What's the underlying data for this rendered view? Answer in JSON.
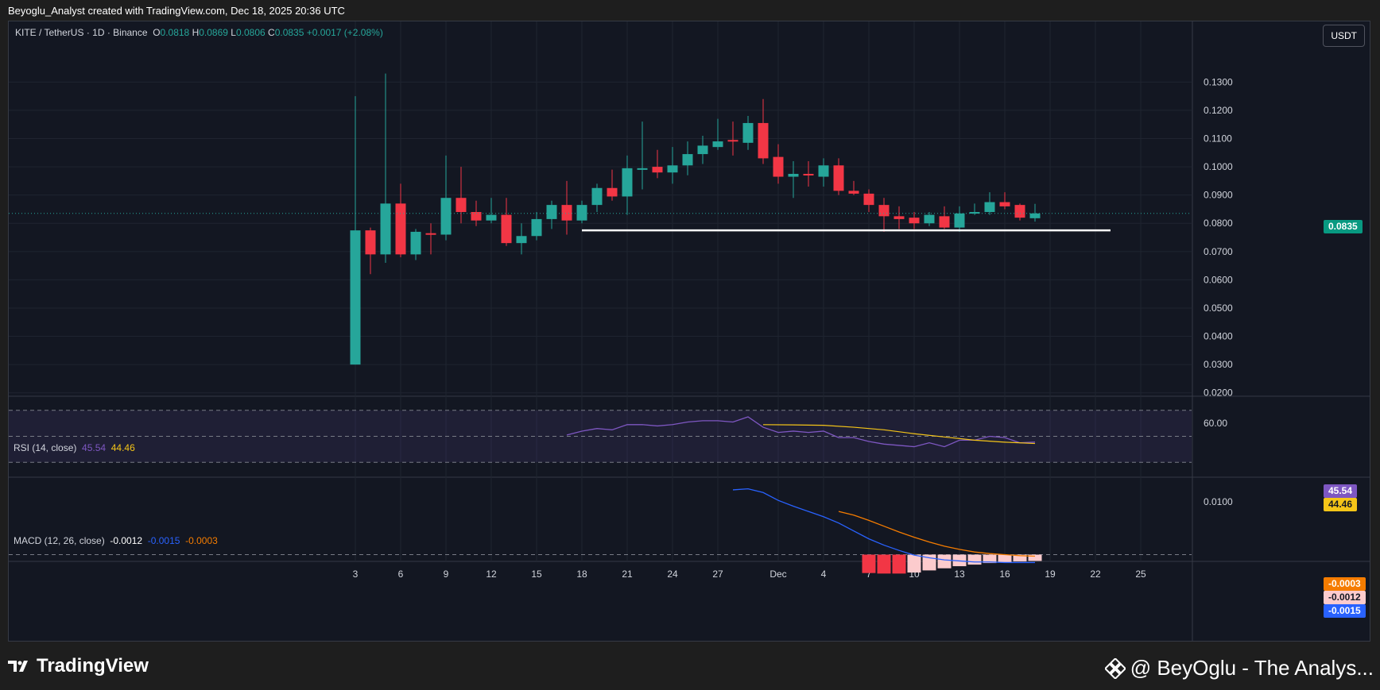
{
  "header": {
    "attribution": "Beyoglu_Analyst created with TradingView.com, Dec 18, 2025 20:36 UTC"
  },
  "legend": {
    "symbol": "KITE / TetherUS · 1D · Binance",
    "o_label": "O",
    "o_val": "0.0818",
    "h_label": "H",
    "h_val": "0.0869",
    "l_label": "L",
    "l_val": "0.0806",
    "c_label": "C",
    "c_val": "0.0835",
    "change": "+0.0017 (+2.08%)"
  },
  "currency_button": "USDT",
  "price_tag": "0.0835",
  "rsi": {
    "label": "RSI (14, close)",
    "value": "45.54",
    "ma": "44.46"
  },
  "macd": {
    "label": "MACD (12, 26, close)",
    "hist": "-0.0012",
    "macd": "-0.0015",
    "signal": "-0.0003"
  },
  "macd_tags": {
    "signal": "-0.0003",
    "hist": "-0.0012",
    "macd": "-0.0015"
  },
  "footer": {
    "logo": "TradingView",
    "credit": "@ BeyOglu - The Analys..."
  },
  "colors": {
    "up": "#26a69a",
    "down": "#f23645",
    "rsi": "#7e57c2",
    "rsi_ma": "#f5c518",
    "macd": "#2962ff",
    "signal": "#f57c00"
  },
  "chart_data": {
    "type": "candlestick",
    "title": "KITE / TetherUS · 1D · Binance",
    "x_ticks": [
      {
        "day": 3,
        "label": "3"
      },
      {
        "day": 6,
        "label": "6"
      },
      {
        "day": 9,
        "label": "9"
      },
      {
        "day": 12,
        "label": "12"
      },
      {
        "day": 15,
        "label": "15"
      },
      {
        "day": 18,
        "label": "18"
      },
      {
        "day": 21,
        "label": "21"
      },
      {
        "day": 24,
        "label": "24"
      },
      {
        "day": 27,
        "label": "27"
      },
      {
        "day": 31,
        "label": "Dec"
      },
      {
        "day": 34,
        "label": "4"
      },
      {
        "day": 37,
        "label": "7"
      },
      {
        "day": 40,
        "label": "10"
      },
      {
        "day": 43,
        "label": "13"
      },
      {
        "day": 46,
        "label": "16"
      },
      {
        "day": 49,
        "label": "19"
      },
      {
        "day": 52,
        "label": "22"
      },
      {
        "day": 55,
        "label": "25"
      }
    ],
    "y_ticks": [
      "0.1300",
      "0.1200",
      "0.1100",
      "0.1000",
      "0.0900",
      "0.0800",
      "0.0700",
      "0.0600",
      "0.0500",
      "0.0400",
      "0.0300",
      "0.0200"
    ],
    "ylim": [
      0.0195,
      0.136
    ],
    "candles": [
      {
        "day": 3,
        "o": 0.03,
        "h": 0.125,
        "l": 0.03,
        "c": 0.0775
      },
      {
        "day": 4,
        "o": 0.0775,
        "h": 0.0785,
        "l": 0.062,
        "c": 0.069
      },
      {
        "day": 5,
        "o": 0.069,
        "h": 0.133,
        "l": 0.066,
        "c": 0.087
      },
      {
        "day": 6,
        "o": 0.087,
        "h": 0.094,
        "l": 0.068,
        "c": 0.069
      },
      {
        "day": 7,
        "o": 0.069,
        "h": 0.078,
        "l": 0.067,
        "c": 0.077
      },
      {
        "day": 8,
        "o": 0.0765,
        "h": 0.08,
        "l": 0.069,
        "c": 0.076
      },
      {
        "day": 9,
        "o": 0.076,
        "h": 0.104,
        "l": 0.074,
        "c": 0.089
      },
      {
        "day": 10,
        "o": 0.089,
        "h": 0.1,
        "l": 0.08,
        "c": 0.084
      },
      {
        "day": 11,
        "o": 0.084,
        "h": 0.088,
        "l": 0.079,
        "c": 0.081
      },
      {
        "day": 12,
        "o": 0.081,
        "h": 0.089,
        "l": 0.08,
        "c": 0.083
      },
      {
        "day": 13,
        "o": 0.083,
        "h": 0.089,
        "l": 0.072,
        "c": 0.073
      },
      {
        "day": 14,
        "o": 0.073,
        "h": 0.08,
        "l": 0.069,
        "c": 0.0755
      },
      {
        "day": 15,
        "o": 0.0755,
        "h": 0.084,
        "l": 0.074,
        "c": 0.0815
      },
      {
        "day": 16,
        "o": 0.0815,
        "h": 0.088,
        "l": 0.078,
        "c": 0.0865
      },
      {
        "day": 17,
        "o": 0.0865,
        "h": 0.095,
        "l": 0.076,
        "c": 0.081
      },
      {
        "day": 18,
        "o": 0.081,
        "h": 0.088,
        "l": 0.08,
        "c": 0.0865
      },
      {
        "day": 19,
        "o": 0.0865,
        "h": 0.094,
        "l": 0.084,
        "c": 0.0925
      },
      {
        "day": 20,
        "o": 0.0925,
        "h": 0.099,
        "l": 0.088,
        "c": 0.0895
      },
      {
        "day": 21,
        "o": 0.0895,
        "h": 0.104,
        "l": 0.083,
        "c": 0.0995
      },
      {
        "day": 22,
        "o": 0.0995,
        "h": 0.116,
        "l": 0.092,
        "c": 0.0995
      },
      {
        "day": 23,
        "o": 0.1,
        "h": 0.106,
        "l": 0.096,
        "c": 0.098
      },
      {
        "day": 24,
        "o": 0.098,
        "h": 0.107,
        "l": 0.094,
        "c": 0.1005
      },
      {
        "day": 25,
        "o": 0.1005,
        "h": 0.109,
        "l": 0.097,
        "c": 0.1045
      },
      {
        "day": 26,
        "o": 0.1045,
        "h": 0.111,
        "l": 0.101,
        "c": 0.1075
      },
      {
        "day": 27,
        "o": 0.107,
        "h": 0.117,
        "l": 0.106,
        "c": 0.109
      },
      {
        "day": 28,
        "o": 0.1095,
        "h": 0.116,
        "l": 0.104,
        "c": 0.109
      },
      {
        "day": 29,
        "o": 0.1085,
        "h": 0.118,
        "l": 0.106,
        "c": 0.1155
      },
      {
        "day": 30,
        "o": 0.1155,
        "h": 0.124,
        "l": 0.101,
        "c": 0.103
      },
      {
        "day": 31,
        "o": 0.1035,
        "h": 0.108,
        "l": 0.094,
        "c": 0.0965
      },
      {
        "day": 32,
        "o": 0.0965,
        "h": 0.102,
        "l": 0.089,
        "c": 0.0975
      },
      {
        "day": 33,
        "o": 0.0975,
        "h": 0.102,
        "l": 0.093,
        "c": 0.097
      },
      {
        "day": 34,
        "o": 0.0965,
        "h": 0.103,
        "l": 0.093,
        "c": 0.1005
      },
      {
        "day": 35,
        "o": 0.1005,
        "h": 0.103,
        "l": 0.09,
        "c": 0.0915
      },
      {
        "day": 36,
        "o": 0.0915,
        "h": 0.095,
        "l": 0.09,
        "c": 0.0905
      },
      {
        "day": 37,
        "o": 0.0905,
        "h": 0.092,
        "l": 0.084,
        "c": 0.0865
      },
      {
        "day": 38,
        "o": 0.0865,
        "h": 0.089,
        "l": 0.077,
        "c": 0.0825
      },
      {
        "day": 39,
        "o": 0.0825,
        "h": 0.086,
        "l": 0.078,
        "c": 0.0815
      },
      {
        "day": 40,
        "o": 0.082,
        "h": 0.084,
        "l": 0.078,
        "c": 0.08
      },
      {
        "day": 41,
        "o": 0.08,
        "h": 0.084,
        "l": 0.079,
        "c": 0.083
      },
      {
        "day": 42,
        "o": 0.0825,
        "h": 0.086,
        "l": 0.078,
        "c": 0.0785
      },
      {
        "day": 43,
        "o": 0.0785,
        "h": 0.086,
        "l": 0.077,
        "c": 0.0835
      },
      {
        "day": 44,
        "o": 0.0835,
        "h": 0.087,
        "l": 0.083,
        "c": 0.084
      },
      {
        "day": 45,
        "o": 0.084,
        "h": 0.091,
        "l": 0.083,
        "c": 0.0875
      },
      {
        "day": 46,
        "o": 0.0875,
        "h": 0.091,
        "l": 0.085,
        "c": 0.086
      },
      {
        "day": 47,
        "o": 0.0865,
        "h": 0.087,
        "l": 0.081,
        "c": 0.082
      },
      {
        "day": 48,
        "o": 0.0818,
        "h": 0.0869,
        "l": 0.0806,
        "c": 0.0835
      }
    ],
    "support_line": {
      "from_day": 18,
      "to_day": 53,
      "price": 0.0775
    },
    "last_price": 0.0835,
    "rsi": {
      "y_ticks": [
        "60.00"
      ],
      "bands": [
        70,
        50,
        30
      ],
      "ylim": [
        24,
        76
      ],
      "rsi_values": [
        [
          17,
          51
        ],
        [
          18,
          54
        ],
        [
          19,
          56
        ],
        [
          20,
          55
        ],
        [
          21,
          59
        ],
        [
          22,
          59
        ],
        [
          23,
          58
        ],
        [
          24,
          59
        ],
        [
          25,
          61
        ],
        [
          26,
          62
        ],
        [
          27,
          62
        ],
        [
          28,
          61
        ],
        [
          29,
          65
        ],
        [
          30,
          57
        ],
        [
          31,
          53
        ],
        [
          32,
          54
        ],
        [
          33,
          53
        ],
        [
          34,
          54
        ],
        [
          35,
          49
        ],
        [
          36,
          49
        ],
        [
          37,
          46
        ],
        [
          38,
          44
        ],
        [
          39,
          43
        ],
        [
          40,
          42
        ],
        [
          41,
          45
        ],
        [
          42,
          42
        ],
        [
          43,
          47
        ],
        [
          44,
          47
        ],
        [
          45,
          50
        ],
        [
          46,
          49
        ],
        [
          47,
          45
        ],
        [
          48,
          45.54
        ]
      ],
      "ma_values": [
        [
          30,
          59
        ],
        [
          32,
          58.8
        ],
        [
          34,
          58.5
        ],
        [
          36,
          57
        ],
        [
          38,
          55
        ],
        [
          40,
          52
        ],
        [
          42,
          49.5
        ],
        [
          44,
          47
        ],
        [
          46,
          45.5
        ],
        [
          48,
          44.46
        ]
      ]
    },
    "macd": {
      "y_ticks": [
        "0.0100"
      ],
      "ylim": [
        -0.0043,
        0.0138
      ],
      "macd_values": [
        [
          28,
          0.0123
        ],
        [
          29,
          0.0125
        ],
        [
          30,
          0.0118
        ],
        [
          31,
          0.0103
        ],
        [
          32,
          0.0092
        ],
        [
          33,
          0.0082
        ],
        [
          34,
          0.0072
        ],
        [
          35,
          0.006
        ],
        [
          36,
          0.0045
        ],
        [
          37,
          0.003
        ],
        [
          38,
          0.0018
        ],
        [
          39,
          0.0008
        ],
        [
          40,
          -0.0001
        ],
        [
          41,
          -0.0006
        ],
        [
          42,
          -0.001
        ],
        [
          43,
          -0.0012
        ],
        [
          44,
          -0.0014
        ],
        [
          45,
          -0.0014
        ],
        [
          46,
          -0.0015
        ],
        [
          47,
          -0.0015
        ],
        [
          48,
          -0.0015
        ]
      ],
      "signal_values": [
        [
          35,
          0.0082
        ],
        [
          36,
          0.0075
        ],
        [
          37,
          0.0065
        ],
        [
          38,
          0.0054
        ],
        [
          39,
          0.0043
        ],
        [
          40,
          0.0033
        ],
        [
          41,
          0.0024
        ],
        [
          42,
          0.0016
        ],
        [
          43,
          0.001
        ],
        [
          44,
          0.0005
        ],
        [
          45,
          0.0002
        ],
        [
          46,
          0.0
        ],
        [
          47,
          -0.0002
        ],
        [
          48,
          -0.0003
        ]
      ],
      "hist_values": [
        [
          37,
          -0.0035
        ],
        [
          38,
          -0.0036
        ],
        [
          39,
          -0.0036
        ],
        [
          40,
          -0.0034
        ],
        [
          41,
          -0.003
        ],
        [
          42,
          -0.0026
        ],
        [
          43,
          -0.0022
        ],
        [
          44,
          -0.0019
        ],
        [
          45,
          -0.0016
        ],
        [
          46,
          -0.0015
        ],
        [
          47,
          -0.0013
        ],
        [
          48,
          -0.0012
        ]
      ]
    }
  }
}
